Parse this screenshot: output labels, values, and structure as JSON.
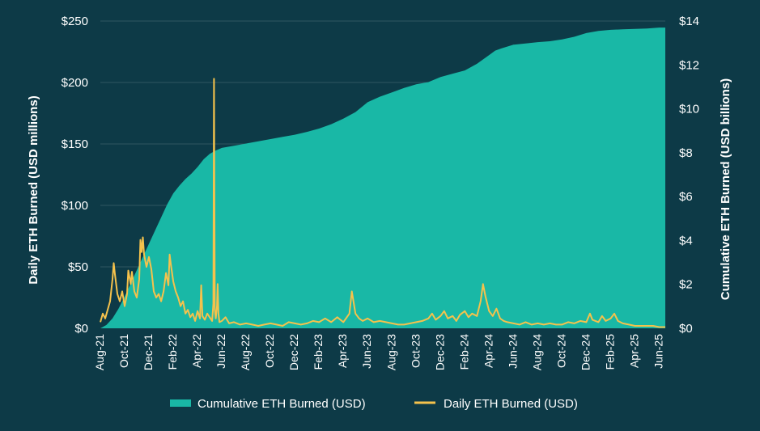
{
  "chart_data": {
    "type": "area+line",
    "title": "",
    "colors": {
      "background": "#0d3a47",
      "area": "#19b8a6",
      "line": "#f5c24c",
      "grid": "#2f5662",
      "text": "#ffffff"
    },
    "left_axis": {
      "label": "Daily ETH Burned (USD millions)",
      "range": [
        0,
        250
      ],
      "ticks": [
        {
          "value": 0,
          "label": "$0"
        },
        {
          "value": 50,
          "label": "$50"
        },
        {
          "value": 100,
          "label": "$100"
        },
        {
          "value": 150,
          "label": "$150"
        },
        {
          "value": 200,
          "label": "$200"
        },
        {
          "value": 250,
          "label": "$250"
        }
      ]
    },
    "right_axis": {
      "label": "Cumulative ETH Burned (USD billions)",
      "range": [
        0,
        14
      ],
      "ticks": [
        {
          "value": 0,
          "label": "$0"
        },
        {
          "value": 2,
          "label": "$2"
        },
        {
          "value": 4,
          "label": "$4"
        },
        {
          "value": 6,
          "label": "$6"
        },
        {
          "value": 8,
          "label": "$8"
        },
        {
          "value": 10,
          "label": "$10"
        },
        {
          "value": 12,
          "label": "$12"
        },
        {
          "value": 14,
          "label": "$14"
        }
      ]
    },
    "x_axis": {
      "range_months": [
        0,
        46.5
      ],
      "categories": [
        "Aug-21",
        "Oct-21",
        "Dec-21",
        "Feb-22",
        "Apr-22",
        "Jun-22",
        "Aug-22",
        "Oct-22",
        "Dec-22",
        "Feb-23",
        "Apr-23",
        "Jun-23",
        "Aug-23",
        "Oct-23",
        "Dec-23",
        "Feb-24",
        "Apr-24",
        "Jun-24",
        "Aug-24",
        "Oct-24",
        "Dec-24",
        "Feb-25",
        "Apr-25",
        "Jun-25"
      ],
      "category_months": [
        0,
        2,
        4,
        6,
        8,
        10,
        12,
        14,
        16,
        18,
        20,
        22,
        24,
        26,
        28,
        30,
        32,
        34,
        36,
        38,
        40,
        42,
        44,
        46
      ]
    },
    "series": [
      {
        "name": "Cumulative ETH Burned (USD)",
        "type": "area",
        "axis": "right",
        "unit": "USD billions",
        "points": [
          [
            0,
            0
          ],
          [
            0.5,
            0.15
          ],
          [
            1,
            0.45
          ],
          [
            1.5,
            0.9
          ],
          [
            2,
            1.45
          ],
          [
            2.5,
            2.05
          ],
          [
            3,
            2.65
          ],
          [
            3.5,
            3.25
          ],
          [
            4,
            3.85
          ],
          [
            4.5,
            4.45
          ],
          [
            5,
            5.05
          ],
          [
            5.5,
            5.65
          ],
          [
            6,
            6.15
          ],
          [
            6.5,
            6.5
          ],
          [
            7,
            6.8
          ],
          [
            7.5,
            7.05
          ],
          [
            8,
            7.35
          ],
          [
            8.5,
            7.7
          ],
          [
            9,
            7.95
          ],
          [
            9.5,
            8.1
          ],
          [
            10,
            8.22
          ],
          [
            11,
            8.32
          ],
          [
            12,
            8.42
          ],
          [
            13,
            8.52
          ],
          [
            14,
            8.62
          ],
          [
            15,
            8.72
          ],
          [
            16,
            8.82
          ],
          [
            17,
            8.95
          ],
          [
            18,
            9.1
          ],
          [
            19,
            9.3
          ],
          [
            20,
            9.55
          ],
          [
            21,
            9.85
          ],
          [
            22,
            10.3
          ],
          [
            23,
            10.55
          ],
          [
            24,
            10.75
          ],
          [
            25,
            10.95
          ],
          [
            26,
            11.12
          ],
          [
            27,
            11.22
          ],
          [
            28,
            11.45
          ],
          [
            29,
            11.6
          ],
          [
            30,
            11.75
          ],
          [
            30.5,
            11.9
          ],
          [
            31,
            12.05
          ],
          [
            31.5,
            12.25
          ],
          [
            32,
            12.45
          ],
          [
            32.5,
            12.65
          ],
          [
            33,
            12.75
          ],
          [
            34,
            12.92
          ],
          [
            35,
            12.98
          ],
          [
            36,
            13.04
          ],
          [
            37,
            13.08
          ],
          [
            38,
            13.16
          ],
          [
            39,
            13.28
          ],
          [
            40,
            13.45
          ],
          [
            41,
            13.55
          ],
          [
            42,
            13.6
          ],
          [
            43,
            13.62
          ],
          [
            44,
            13.64
          ],
          [
            45,
            13.66
          ],
          [
            46,
            13.7
          ],
          [
            46.5,
            13.7
          ]
        ]
      },
      {
        "name": "Daily ETH Burned (USD)",
        "type": "line",
        "axis": "left",
        "unit": "USD millions",
        "points": [
          [
            0,
            5
          ],
          [
            0.2,
            12
          ],
          [
            0.4,
            8
          ],
          [
            0.6,
            15
          ],
          [
            0.8,
            22
          ],
          [
            1,
            40
          ],
          [
            1.1,
            53
          ],
          [
            1.2,
            44
          ],
          [
            1.4,
            28
          ],
          [
            1.6,
            22
          ],
          [
            1.8,
            30
          ],
          [
            2,
            18
          ],
          [
            2.2,
            28
          ],
          [
            2.3,
            47
          ],
          [
            2.5,
            36
          ],
          [
            2.6,
            46
          ],
          [
            2.8,
            30
          ],
          [
            3,
            25
          ],
          [
            3.2,
            40
          ],
          [
            3.3,
            72
          ],
          [
            3.4,
            62
          ],
          [
            3.5,
            74
          ],
          [
            3.6,
            60
          ],
          [
            3.8,
            50
          ],
          [
            4,
            58
          ],
          [
            4.2,
            48
          ],
          [
            4.4,
            30
          ],
          [
            4.6,
            25
          ],
          [
            4.8,
            28
          ],
          [
            5,
            22
          ],
          [
            5.2,
            30
          ],
          [
            5.4,
            45
          ],
          [
            5.6,
            35
          ],
          [
            5.7,
            60
          ],
          [
            5.8,
            52
          ],
          [
            6,
            38
          ],
          [
            6.2,
            30
          ],
          [
            6.4,
            25
          ],
          [
            6.6,
            18
          ],
          [
            6.8,
            22
          ],
          [
            7,
            12
          ],
          [
            7.2,
            15
          ],
          [
            7.4,
            9
          ],
          [
            7.6,
            12
          ],
          [
            7.8,
            6
          ],
          [
            8,
            14
          ],
          [
            8.2,
            8
          ],
          [
            8.3,
            35
          ],
          [
            8.4,
            10
          ],
          [
            8.6,
            7
          ],
          [
            8.8,
            12
          ],
          [
            9,
            9
          ],
          [
            9.2,
            6
          ],
          [
            9.3,
            20
          ],
          [
            9.35,
            203
          ],
          [
            9.42,
            15
          ],
          [
            9.5,
            8
          ],
          [
            9.6,
            18
          ],
          [
            9.65,
            36
          ],
          [
            9.72,
            12
          ],
          [
            9.8,
            5
          ],
          [
            10,
            6
          ],
          [
            10.3,
            9
          ],
          [
            10.6,
            4
          ],
          [
            11,
            5
          ],
          [
            11.5,
            3
          ],
          [
            12,
            4
          ],
          [
            12.5,
            3
          ],
          [
            13,
            2
          ],
          [
            13.5,
            3
          ],
          [
            14,
            4
          ],
          [
            14.5,
            3
          ],
          [
            15,
            2
          ],
          [
            15.5,
            5
          ],
          [
            16,
            4
          ],
          [
            16.5,
            3
          ],
          [
            17,
            4
          ],
          [
            17.5,
            6
          ],
          [
            18,
            5
          ],
          [
            18.5,
            8
          ],
          [
            19,
            5
          ],
          [
            19.5,
            9
          ],
          [
            20,
            5
          ],
          [
            20.5,
            12
          ],
          [
            20.7,
            30
          ],
          [
            20.8,
            24
          ],
          [
            21,
            12
          ],
          [
            21.3,
            8
          ],
          [
            21.6,
            6
          ],
          [
            22,
            8
          ],
          [
            22.5,
            5
          ],
          [
            23,
            6
          ],
          [
            23.5,
            5
          ],
          [
            24,
            4
          ],
          [
            24.5,
            3
          ],
          [
            25,
            3
          ],
          [
            25.5,
            4
          ],
          [
            26,
            5
          ],
          [
            26.5,
            6
          ],
          [
            27,
            8
          ],
          [
            27.3,
            12
          ],
          [
            27.6,
            7
          ],
          [
            28,
            10
          ],
          [
            28.3,
            14
          ],
          [
            28.6,
            8
          ],
          [
            29,
            10
          ],
          [
            29.3,
            6
          ],
          [
            29.6,
            11
          ],
          [
            30,
            14
          ],
          [
            30.3,
            9
          ],
          [
            30.6,
            12
          ],
          [
            31,
            10
          ],
          [
            31.3,
            22
          ],
          [
            31.5,
            36
          ],
          [
            31.7,
            26
          ],
          [
            32,
            14
          ],
          [
            32.3,
            10
          ],
          [
            32.6,
            16
          ],
          [
            32.9,
            8
          ],
          [
            33.2,
            6
          ],
          [
            33.5,
            5
          ],
          [
            34,
            4
          ],
          [
            34.5,
            3
          ],
          [
            35,
            5
          ],
          [
            35.5,
            3
          ],
          [
            36,
            4
          ],
          [
            36.5,
            3
          ],
          [
            37,
            4
          ],
          [
            37.5,
            3
          ],
          [
            38,
            3
          ],
          [
            38.5,
            5
          ],
          [
            39,
            4
          ],
          [
            39.5,
            6
          ],
          [
            40,
            5
          ],
          [
            40.3,
            12
          ],
          [
            40.5,
            7
          ],
          [
            41,
            5
          ],
          [
            41.3,
            10
          ],
          [
            41.6,
            6
          ],
          [
            42,
            8
          ],
          [
            42.3,
            12
          ],
          [
            42.6,
            6
          ],
          [
            43,
            4
          ],
          [
            43.5,
            3
          ],
          [
            44,
            2
          ],
          [
            44.5,
            2
          ],
          [
            45,
            2
          ],
          [
            45.5,
            2
          ],
          [
            46,
            1
          ],
          [
            46.5,
            1
          ]
        ]
      }
    ],
    "legend": {
      "position": "bottom-center",
      "items": [
        {
          "label": "Cumulative ETH Burned (USD)",
          "swatch": "area"
        },
        {
          "label": "Daily ETH Burned (USD)",
          "swatch": "line"
        }
      ]
    }
  }
}
